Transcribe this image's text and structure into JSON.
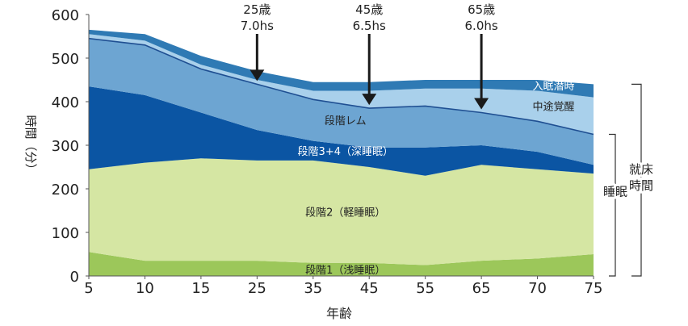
{
  "chart_data": {
    "type": "area",
    "stacked": true,
    "title": "",
    "xlabel": "年齢",
    "ylabel": "時間（分）",
    "ylim": [
      0,
      600
    ],
    "yticks": [
      0,
      100,
      200,
      300,
      400,
      500,
      600
    ],
    "categories": [
      "5",
      "10",
      "15",
      "25",
      "35",
      "45",
      "55",
      "65",
      "70",
      "75"
    ],
    "series": [
      {
        "name": "段階1（浅睡眠）",
        "color": "#9cc75a",
        "values": [
          55,
          35,
          35,
          35,
          30,
          30,
          25,
          35,
          40,
          50
        ]
      },
      {
        "name": "段階2（軽睡眠）",
        "color": "#d5e6a3",
        "values": [
          190,
          225,
          235,
          230,
          235,
          220,
          205,
          220,
          205,
          185
        ]
      },
      {
        "name": "段階3+4（深睡眠）",
        "color": "#0b55a3",
        "values": [
          190,
          155,
          105,
          70,
          45,
          45,
          65,
          45,
          40,
          20
        ]
      },
      {
        "name": "段階レム",
        "color": "#6da5d2",
        "values": [
          110,
          115,
          100,
          105,
          95,
          90,
          95,
          75,
          70,
          70
        ]
      },
      {
        "name": "中途覚醒",
        "color": "#a9d0eb",
        "values": [
          10,
          10,
          10,
          10,
          20,
          40,
          40,
          55,
          70,
          85
        ]
      },
      {
        "name": "入眠潜時",
        "color": "#2f7ab4",
        "values": [
          10,
          15,
          20,
          20,
          20,
          20,
          20,
          20,
          25,
          30
        ]
      }
    ],
    "annotations": [
      {
        "age": "25歳",
        "hours": "7.0hs",
        "category": "25",
        "value": 440
      },
      {
        "age": "45歳",
        "hours": "6.5hs",
        "category": "45",
        "value": 385
      },
      {
        "age": "65歳",
        "hours": "6.0hs",
        "category": "65",
        "value": 375
      }
    ],
    "brackets": [
      {
        "label": "睡眠"
      },
      {
        "label_lines": [
          "就床",
          "時間"
        ]
      }
    ]
  }
}
